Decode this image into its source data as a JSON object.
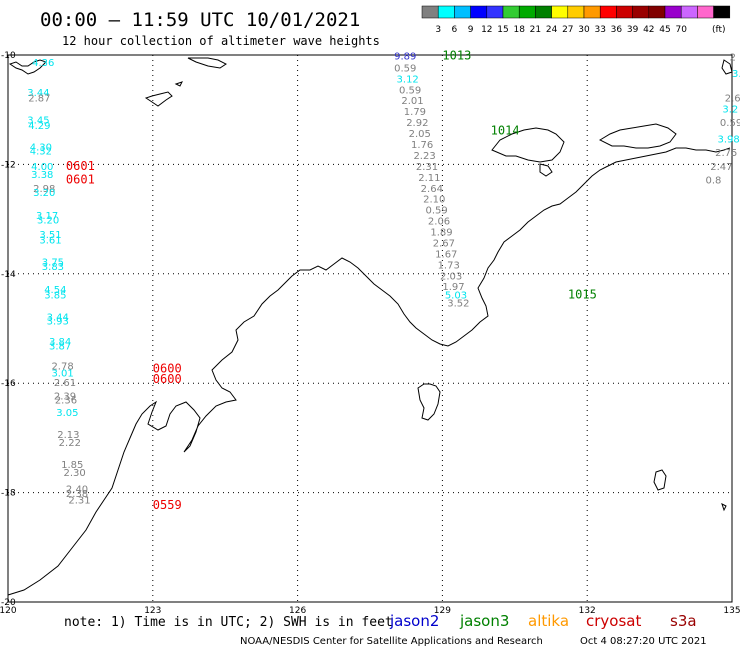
{
  "header": {
    "title": "00:00 – 11:59 UTC 10/01/2021",
    "subtitle": "12 hour collection of altimeter wave heights"
  },
  "color_scale": {
    "unit": "(ft)",
    "colors": [
      "#808080",
      "#00ffff",
      "#00bfff",
      "#0000ff",
      "#3333ff",
      "#33cc33",
      "#00aa00",
      "#008000",
      "#ffff00",
      "#ffcc00",
      "#ff9900",
      "#ff0000",
      "#cc0000",
      "#990000",
      "#800000",
      "#9900cc",
      "#cc66ff",
      "#ff66cc",
      "#000000"
    ],
    "labels": [
      "3",
      "6",
      "9",
      "12",
      "15",
      "18",
      "21",
      "24",
      "27",
      "30",
      "33",
      "36",
      "39",
      "42",
      "45",
      "70"
    ]
  },
  "axes": {
    "x_ticks": [
      "120",
      "123",
      "126",
      "129",
      "132",
      "135"
    ],
    "y_ticks": [
      "-10",
      "-12",
      "-14",
      "-16",
      "-18",
      "-20"
    ]
  },
  "footer": {
    "note": "note: 1) Time is in UTC; 2) SWH is in feet",
    "credit": "NOAA/NESDIS Center for Satellite Applications and Research",
    "timestamp": "Oct  4 08:27:20 UTC 2021"
  },
  "legend": [
    {
      "name": "jason2",
      "color": "#0000cc"
    },
    {
      "name": "jason3",
      "color": "#008000"
    },
    {
      "name": "altika",
      "color": "#ff9900"
    },
    {
      "name": "cryosat",
      "color": "#cc0000"
    },
    {
      "name": "s3a",
      "color": "#990000"
    }
  ],
  "tracks": {
    "west": [
      {
        "lon": 120.5,
        "lat": -10.2,
        "v": "4.36",
        "c": "#00e5ee"
      },
      {
        "lon": 120.4,
        "lat": -10.75,
        "v": "3.44",
        "c": "#00e5ee"
      },
      {
        "lon": 120.42,
        "lat": -10.85,
        "v": "2.87",
        "c": "#808080"
      },
      {
        "lon": 120.4,
        "lat": -11.25,
        "v": "3.45",
        "c": "#00e5ee"
      },
      {
        "lon": 120.42,
        "lat": -11.35,
        "v": "4.29",
        "c": "#00e5ee"
      },
      {
        "lon": 120.45,
        "lat": -11.75,
        "v": "4.30",
        "c": "#00e5ee"
      },
      {
        "lon": 120.45,
        "lat": -11.82,
        "v": "4.32",
        "c": "#00e5ee"
      },
      {
        "lon": 120.48,
        "lat": -12.1,
        "v": "4.00",
        "c": "#00e5ee"
      },
      {
        "lon": 120.48,
        "lat": -12.25,
        "v": "3.38",
        "c": "#00e5ee"
      },
      {
        "lon": 120.52,
        "lat": -12.5,
        "v": "2.98",
        "c": "#808080"
      },
      {
        "lon": 120.52,
        "lat": -12.58,
        "v": "3.20",
        "c": "#00e5ee"
      },
      {
        "lon": 120.58,
        "lat": -13.0,
        "v": "3.17",
        "c": "#00e5ee"
      },
      {
        "lon": 120.6,
        "lat": -13.08,
        "v": "3.20",
        "c": "#00e5ee"
      },
      {
        "lon": 120.65,
        "lat": -13.35,
        "v": "3.51",
        "c": "#00e5ee"
      },
      {
        "lon": 120.65,
        "lat": -13.45,
        "v": "3.61",
        "c": "#00e5ee"
      },
      {
        "lon": 120.7,
        "lat": -13.85,
        "v": "3.75",
        "c": "#00e5ee"
      },
      {
        "lon": 120.7,
        "lat": -13.93,
        "v": "3.83",
        "c": "#00e5ee"
      },
      {
        "lon": 120.75,
        "lat": -14.35,
        "v": "4.54",
        "c": "#00e5ee"
      },
      {
        "lon": 120.75,
        "lat": -14.45,
        "v": "3.85",
        "c": "#00e5ee"
      },
      {
        "lon": 120.8,
        "lat": -14.85,
        "v": "3.44",
        "c": "#00e5ee"
      },
      {
        "lon": 120.8,
        "lat": -14.93,
        "v": "3.93",
        "c": "#00e5ee"
      },
      {
        "lon": 120.85,
        "lat": -15.3,
        "v": "3.84",
        "c": "#00e5ee"
      },
      {
        "lon": 120.85,
        "lat": -15.38,
        "v": "3.87",
        "c": "#00e5ee"
      },
      {
        "lon": 120.9,
        "lat": -15.75,
        "v": "2.78",
        "c": "#808080"
      },
      {
        "lon": 120.9,
        "lat": -15.88,
        "v": "3.01",
        "c": "#00e5ee"
      },
      {
        "lon": 120.95,
        "lat": -16.05,
        "v": "2.61",
        "c": "#808080"
      },
      {
        "lon": 120.95,
        "lat": -16.3,
        "v": "2.39",
        "c": "#808080"
      },
      {
        "lon": 120.97,
        "lat": -16.37,
        "v": "2.36",
        "c": "#808080"
      },
      {
        "lon": 121.0,
        "lat": -16.6,
        "v": "3.05",
        "c": "#00e5ee"
      },
      {
        "lon": 121.02,
        "lat": -17.0,
        "v": "2.13",
        "c": "#808080"
      },
      {
        "lon": 121.05,
        "lat": -17.15,
        "v": "2.22",
        "c": "#808080"
      },
      {
        "lon": 121.1,
        "lat": -17.55,
        "v": "1.85",
        "c": "#808080"
      },
      {
        "lon": 121.15,
        "lat": -17.7,
        "v": "2.30",
        "c": "#808080"
      },
      {
        "lon": 121.2,
        "lat": -18.0,
        "v": "2.40",
        "c": "#808080"
      },
      {
        "lon": 121.2,
        "lat": -18.08,
        "v": "2.38",
        "c": "#808080"
      },
      {
        "lon": 121.25,
        "lat": -18.2,
        "v": "2.31",
        "c": "#808080"
      }
    ],
    "middle": [
      {
        "lon": 128.0,
        "lat": -10.08,
        "v": "9.89",
        "c": "#3333cc"
      },
      {
        "lon": 128.0,
        "lat": -10.3,
        "v": "0.59",
        "c": "#808080"
      },
      {
        "lon": 128.05,
        "lat": -10.5,
        "v": "3.12",
        "c": "#00e5ee"
      },
      {
        "lon": 128.1,
        "lat": -10.7,
        "v": "0.59",
        "c": "#808080"
      },
      {
        "lon": 128.15,
        "lat": -10.9,
        "v": "2.01",
        "c": "#808080"
      },
      {
        "lon": 128.2,
        "lat": -11.1,
        "v": "1.79",
        "c": "#808080"
      },
      {
        "lon": 128.25,
        "lat": -11.3,
        "v": "2.92",
        "c": "#808080"
      },
      {
        "lon": 128.3,
        "lat": -11.5,
        "v": "2.05",
        "c": "#808080"
      },
      {
        "lon": 128.35,
        "lat": -11.7,
        "v": "1.76",
        "c": "#808080"
      },
      {
        "lon": 128.4,
        "lat": -11.9,
        "v": "2.23",
        "c": "#808080"
      },
      {
        "lon": 128.45,
        "lat": -12.1,
        "v": "2.31",
        "c": "#808080"
      },
      {
        "lon": 128.5,
        "lat": -12.3,
        "v": "2.11",
        "c": "#808080"
      },
      {
        "lon": 128.55,
        "lat": -12.5,
        "v": "2.64",
        "c": "#808080"
      },
      {
        "lon": 128.6,
        "lat": -12.7,
        "v": "2.10",
        "c": "#808080"
      },
      {
        "lon": 128.65,
        "lat": -12.9,
        "v": "0.59",
        "c": "#808080"
      },
      {
        "lon": 128.7,
        "lat": -13.1,
        "v": "2.06",
        "c": "#808080"
      },
      {
        "lon": 128.75,
        "lat": -13.3,
        "v": "1.89",
        "c": "#808080"
      },
      {
        "lon": 128.8,
        "lat": -13.5,
        "v": "2.67",
        "c": "#808080"
      },
      {
        "lon": 128.85,
        "lat": -13.7,
        "v": "1.67",
        "c": "#808080"
      },
      {
        "lon": 128.9,
        "lat": -13.9,
        "v": "1.73",
        "c": "#808080"
      },
      {
        "lon": 128.95,
        "lat": -14.1,
        "v": "2.03",
        "c": "#808080"
      },
      {
        "lon": 129.0,
        "lat": -14.3,
        "v": "1.97",
        "c": "#808080"
      },
      {
        "lon": 129.05,
        "lat": -14.45,
        "v": "5.03",
        "c": "#00e5ee"
      },
      {
        "lon": 129.1,
        "lat": -14.6,
        "v": "3.52",
        "c": "#808080"
      }
    ],
    "east": [
      {
        "lon": 134.95,
        "lat": -10.1,
        "v": "2",
        "c": "#808080"
      },
      {
        "lon": 135.0,
        "lat": -10.4,
        "v": "3.",
        "c": "#00e5ee"
      },
      {
        "lon": 134.85,
        "lat": -10.85,
        "v": "2.6",
        "c": "#808080"
      },
      {
        "lon": 134.8,
        "lat": -11.05,
        "v": "3.2",
        "c": "#00e5ee"
      },
      {
        "lon": 134.75,
        "lat": -11.3,
        "v": "0.59",
        "c": "#808080"
      },
      {
        "lon": 134.7,
        "lat": -11.6,
        "v": "3.98",
        "c": "#00e5ee"
      },
      {
        "lon": 134.65,
        "lat": -11.85,
        "v": "2.75",
        "c": "#808080"
      },
      {
        "lon": 134.55,
        "lat": -12.1,
        "v": "2.47",
        "c": "#808080"
      },
      {
        "lon": 134.45,
        "lat": -12.35,
        "v": "0.8",
        "c": "#808080"
      }
    ]
  },
  "time_labels": [
    {
      "lon": 121.2,
      "lat": -12.1,
      "t": "0601",
      "c": "#ee0000"
    },
    {
      "lon": 121.2,
      "lat": -12.35,
      "t": "0601",
      "c": "#ee0000"
    },
    {
      "lon": 123.0,
      "lat": -15.8,
      "t": "0600",
      "c": "#ee0000"
    },
    {
      "lon": 123.0,
      "lat": -16.0,
      "t": "0600",
      "c": "#ee0000"
    },
    {
      "lon": 123.0,
      "lat": -18.3,
      "t": "0559",
      "c": "#ee0000"
    },
    {
      "lon": 129.0,
      "lat": -10.08,
      "t": "1013",
      "c": "#008000"
    },
    {
      "lon": 130.0,
      "lat": -11.45,
      "t": "1014",
      "c": "#008000"
    },
    {
      "lon": 131.6,
      "lat": -14.45,
      "t": "1015",
      "c": "#008000"
    }
  ]
}
